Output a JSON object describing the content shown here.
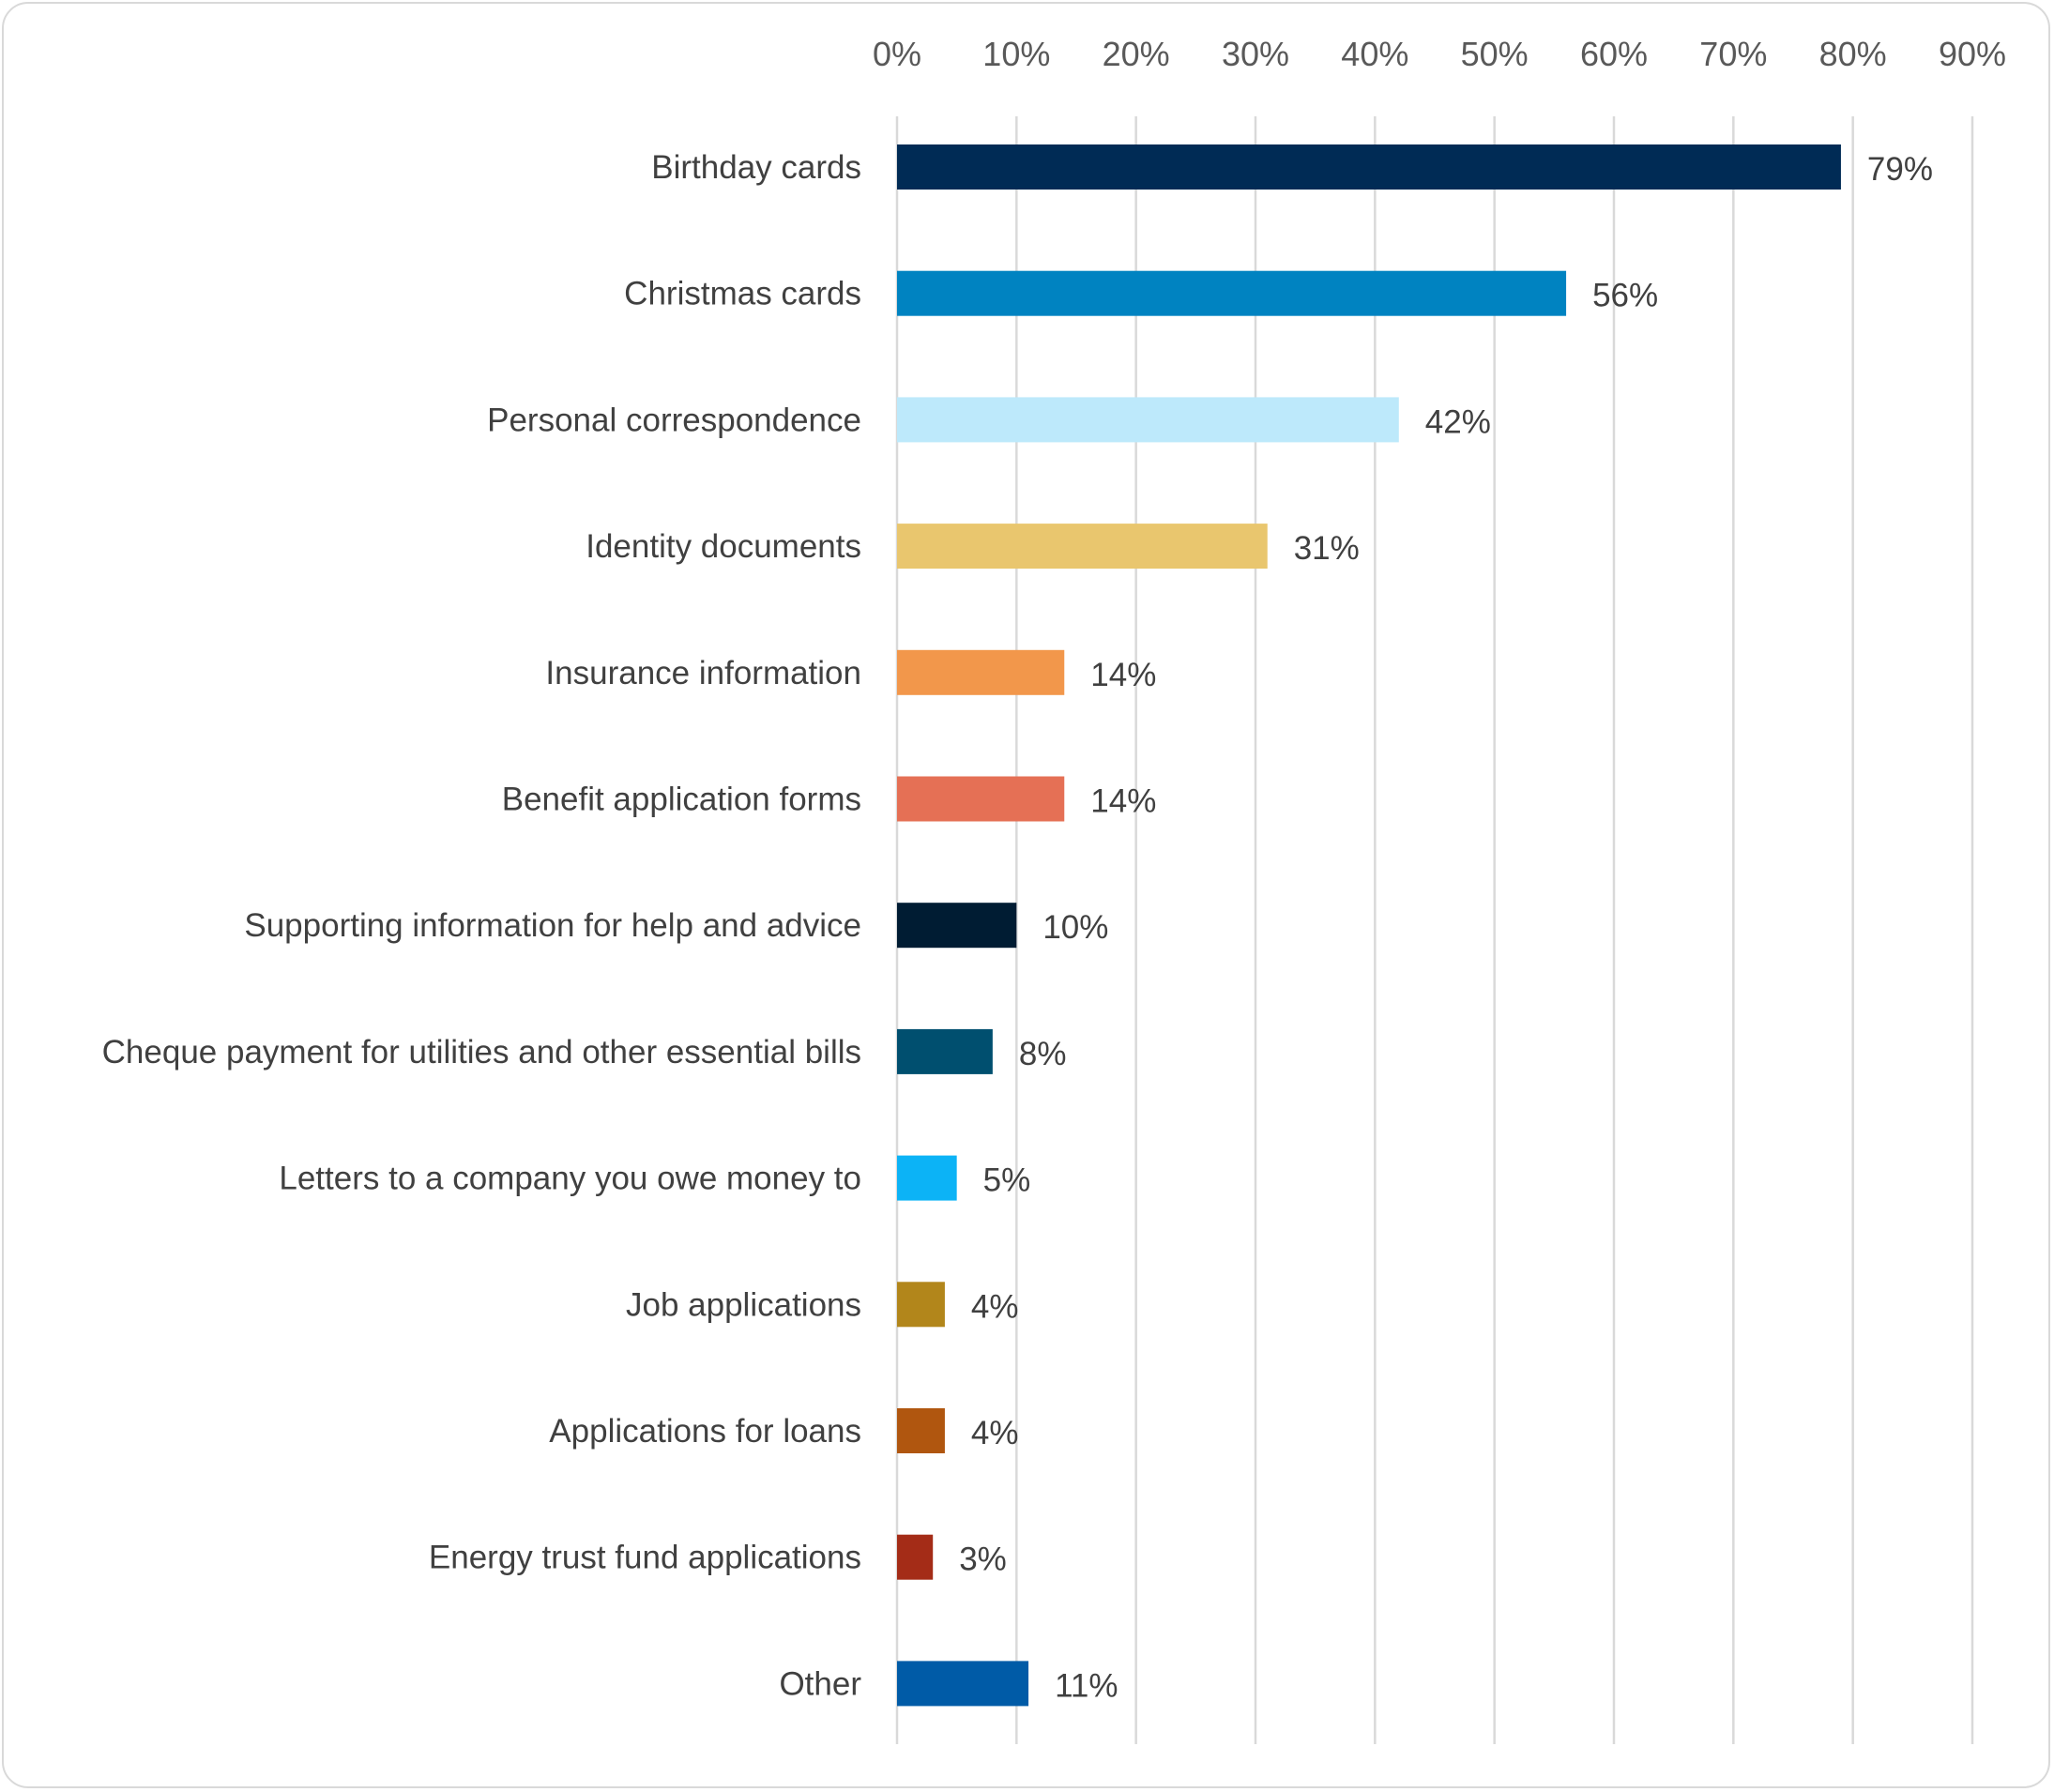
{
  "chart_data": {
    "type": "bar",
    "orientation": "horizontal",
    "title": "",
    "xlabel": "",
    "ylabel": "",
    "xlim": [
      0,
      90
    ],
    "x_ticks": [
      "0%",
      "10%",
      "20%",
      "30%",
      "40%",
      "50%",
      "60%",
      "70%",
      "80%",
      "90%"
    ],
    "x_axis_position": "top",
    "grid": true,
    "legend": "none",
    "value_suffix": "%",
    "categories": [
      "Birthday cards",
      "Christmas cards",
      "Personal correspondence",
      "Identity documents",
      "Insurance information",
      "Benefit application forms",
      "Supporting information for help and advice",
      "Cheque payment for utilities and other essential bills",
      "Letters to a company you owe money to",
      "Job applications",
      "Applications for loans",
      "Energy trust fund applications",
      "Other"
    ],
    "values": [
      79,
      56,
      42,
      31,
      14,
      14,
      10,
      8,
      5,
      4,
      4,
      3,
      11
    ],
    "value_labels": [
      "79%",
      "56%",
      "42%",
      "31%",
      "14%",
      "14%",
      "10%",
      "8%",
      "5%",
      "4%",
      "4%",
      "3%",
      "11%"
    ],
    "colors": [
      "#002b55",
      "#0083c1",
      "#bde9fb",
      "#e9c66e",
      "#f2974b",
      "#e57055",
      "#001c33",
      "#004f6f",
      "#0cb3f6",
      "#b2861b",
      "#b0560f",
      "#a42c17",
      "#005ba7"
    ]
  }
}
